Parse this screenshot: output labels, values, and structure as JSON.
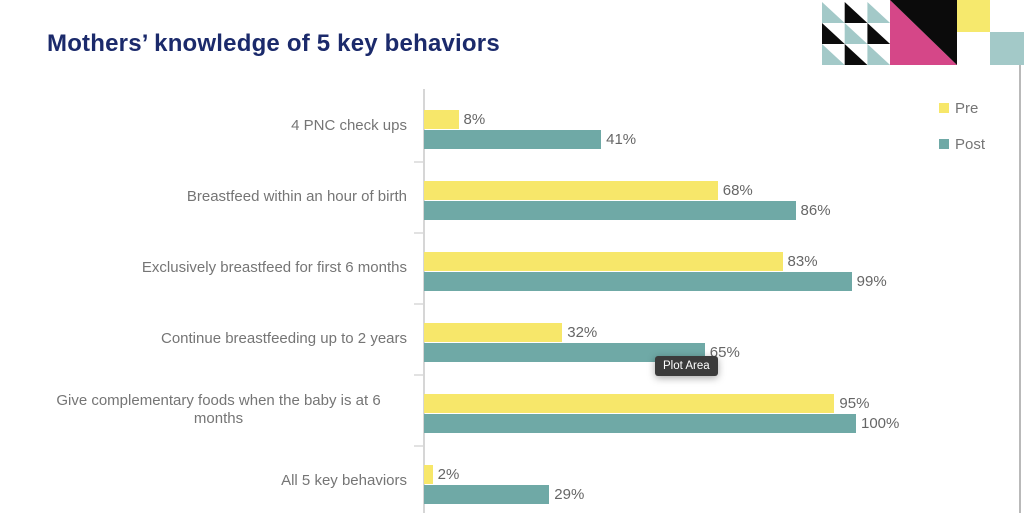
{
  "title": "Mothers’ knowledge of 5 key behaviors",
  "tooltip": {
    "label": "Plot Area"
  },
  "colors": {
    "title": "#1b2a6b",
    "pre": "#f7e76a",
    "post": "#6fa9a6",
    "label_text": "#757575",
    "value_text": "#666666",
    "axis_line": "#d6d6d6",
    "tick": "#e2e2e2",
    "tooltip_bg": "#3b3b3b",
    "tooltip_text": "#ffffff",
    "right_border": "#b9b9b9",
    "deco_teal": "#a3c9c8",
    "deco_black": "#0b0b0b",
    "deco_pink": "#d54788",
    "deco_yellow": "#f6e96d"
  },
  "chart_data": {
    "type": "bar",
    "orientation": "horizontal",
    "title": "Mothers’ knowledge of 5 key behaviors",
    "categories": [
      "4 PNC check ups",
      "Breastfeed within an hour of birth",
      "Exclusively breastfeed for first 6 months",
      "Continue breastfeeding up to 2 years",
      "Give complementary foods when the baby is at 6 months",
      "All 5 key behaviors"
    ],
    "series": [
      {
        "name": "Pre",
        "color_key": "pre",
        "values": [
          8,
          68,
          83,
          32,
          95,
          2
        ]
      },
      {
        "name": "Post",
        "color_key": "post",
        "values": [
          41,
          86,
          99,
          65,
          100,
          29
        ]
      }
    ],
    "value_suffix": "%",
    "data_labels": true,
    "xlim": [
      0,
      100
    ],
    "grid": false,
    "legend_position": "top-right"
  },
  "decoration": {
    "triangle_pattern": [
      [
        "teal",
        "black",
        "teal"
      ],
      [
        "black",
        "teal",
        "black"
      ],
      [
        "teal",
        "black",
        "teal"
      ]
    ],
    "diagonal_square": {
      "lower_left": "pink",
      "upper_right": "black"
    },
    "small_squares": [
      "yellow",
      "teal"
    ]
  }
}
